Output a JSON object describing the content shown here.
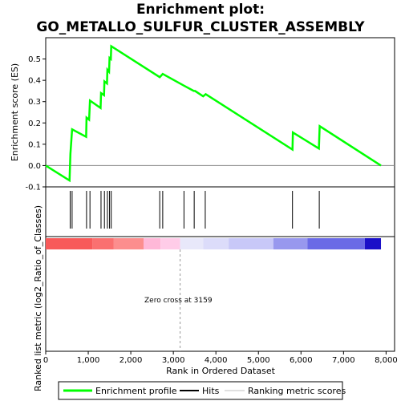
{
  "chart_data": {
    "type": "line",
    "title_line1": "Enrichment plot:",
    "title_line2": "GO_METALLO_SULFUR_CLUSTER_ASSEMBLY",
    "ylabel_top": "Enrichment score (ES)",
    "ylabel_bottom": "Ranked list metric (log2_Ratio_of_Classes)",
    "xlabel": "Rank in Ordered Dataset",
    "annotation": "Zero cross at 3159",
    "zero_cross": 3159,
    "xlim": [
      0,
      8200
    ],
    "ylim": [
      -0.1,
      0.6
    ],
    "x_ticks": [
      0,
      1000,
      2000,
      3000,
      4000,
      5000,
      6000,
      7000,
      8000
    ],
    "x_tick_labels": [
      "0",
      "1,000",
      "2,000",
      "3,000",
      "4,000",
      "5,000",
      "6,000",
      "7,000",
      "8,000"
    ],
    "y_ticks": [
      -0.1,
      0.0,
      0.1,
      0.2,
      0.3,
      0.4,
      0.5
    ],
    "y_tick_labels": [
      "-0.1",
      "0.0",
      "0.1",
      "0.2",
      "0.3",
      "0.4",
      "0.5"
    ],
    "series": [
      {
        "name": "Enrichment profile",
        "color": "#00ff00",
        "points": [
          [
            0,
            0.0
          ],
          [
            560,
            -0.07
          ],
          [
            580,
            0.055
          ],
          [
            620,
            0.17
          ],
          [
            950,
            0.135
          ],
          [
            960,
            0.225
          ],
          [
            1020,
            0.215
          ],
          [
            1040,
            0.305
          ],
          [
            1290,
            0.27
          ],
          [
            1300,
            0.34
          ],
          [
            1370,
            0.33
          ],
          [
            1380,
            0.395
          ],
          [
            1440,
            0.385
          ],
          [
            1450,
            0.45
          ],
          [
            1490,
            0.44
          ],
          [
            1500,
            0.505
          ],
          [
            1530,
            0.5
          ],
          [
            1540,
            0.56
          ],
          [
            2680,
            0.415
          ],
          [
            2750,
            0.43
          ],
          [
            3250,
            0.375
          ],
          [
            3480,
            0.35
          ],
          [
            3510,
            0.35
          ],
          [
            3700,
            0.325
          ],
          [
            3760,
            0.335
          ],
          [
            5800,
            0.075
          ],
          [
            5810,
            0.155
          ],
          [
            6420,
            0.08
          ],
          [
            6440,
            0.185
          ],
          [
            7880,
            0.0
          ]
        ]
      }
    ],
    "hits": [
      575,
      620,
      960,
      1040,
      1300,
      1380,
      1450,
      1500,
      1540,
      2680,
      2750,
      3250,
      3490,
      3750,
      5800,
      6430
    ],
    "legend": [
      {
        "label": "Enrichment profile",
        "color": "#00ff00"
      },
      {
        "label": "Hits",
        "color": "#000000"
      },
      {
        "label": "Ranking metric scores",
        "color": "#c0c0c0"
      }
    ],
    "metric_bar_segments": [
      {
        "start": 0,
        "end": 1100,
        "color": "#f85a5a"
      },
      {
        "start": 1100,
        "end": 1600,
        "color": "#fa7070"
      },
      {
        "start": 1600,
        "end": 2300,
        "color": "#fc8e8e"
      },
      {
        "start": 2300,
        "end": 2700,
        "color": "#ffb8d8"
      },
      {
        "start": 2700,
        "end": 3159,
        "color": "#ffcce8"
      },
      {
        "start": 3159,
        "end": 3700,
        "color": "#e8e8fa"
      },
      {
        "start": 3700,
        "end": 4300,
        "color": "#dcdcfa"
      },
      {
        "start": 4300,
        "end": 5350,
        "color": "#c8c8f8"
      },
      {
        "start": 5350,
        "end": 6150,
        "color": "#9898ee"
      },
      {
        "start": 6150,
        "end": 7500,
        "color": "#6a6ae6"
      },
      {
        "start": 7500,
        "end": 7880,
        "color": "#1a10c8"
      }
    ]
  }
}
